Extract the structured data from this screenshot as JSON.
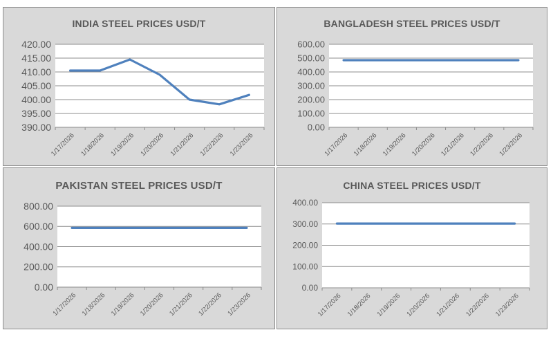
{
  "chart_data": [
    {
      "id": "india",
      "type": "line",
      "title": "INDIA STEEL PRICES USD/T",
      "categories": [
        "1/17/2026",
        "1/18/2026",
        "1/19/2026",
        "1/20/2026",
        "1/21/2026",
        "1/22/2026",
        "1/23/2026"
      ],
      "series": [
        {
          "values": [
            410.5,
            410.5,
            414.5,
            409.0,
            400.0,
            398.3,
            401.7
          ]
        }
      ],
      "ylim": [
        390,
        420
      ],
      "yticks": [
        "390.00",
        "395.00",
        "400.00",
        "405.00",
        "410.00",
        "415.00",
        "420.00"
      ],
      "grid": true,
      "color": "#4f81bd"
    },
    {
      "id": "bangladesh",
      "type": "line",
      "title": "BANGLADESH STEEL PRICES USD/T",
      "categories": [
        "1/17/2026",
        "1/18/2026",
        "1/19/2026",
        "1/20/2026",
        "1/21/2026",
        "1/22/2026",
        "1/23/2026"
      ],
      "series": [
        {
          "values": [
            485,
            485,
            485,
            485,
            485,
            485,
            485
          ]
        }
      ],
      "ylim": [
        0,
        600
      ],
      "yticks": [
        "0.00",
        "100.00",
        "200.00",
        "300.00",
        "400.00",
        "500.00",
        "600.00"
      ],
      "grid": true,
      "color": "#4f81bd"
    },
    {
      "id": "pakistan",
      "type": "line",
      "title": "PAKISTAN STEEL PRICES USD/T",
      "categories": [
        "1/17/2026",
        "1/18/2026",
        "1/19/2026",
        "1/20/2026",
        "1/21/2026",
        "1/22/2026",
        "1/23/2026"
      ],
      "series": [
        {
          "values": [
            585,
            585,
            585,
            585,
            585,
            585,
            585
          ]
        }
      ],
      "ylim": [
        0,
        800
      ],
      "yticks": [
        "0.00",
        "200.00",
        "400.00",
        "600.00",
        "800.00"
      ],
      "grid": true,
      "color": "#4f81bd"
    },
    {
      "id": "china",
      "type": "line",
      "title": "CHINA STEEL PRICES USD/T",
      "categories": [
        "1/17/2026",
        "1/18/2026",
        "1/19/2026",
        "1/20/2026",
        "1/21/2026",
        "1/22/2026",
        "1/23/2026"
      ],
      "series": [
        {
          "values": [
            302,
            302,
            302,
            302,
            302,
            302,
            302
          ]
        }
      ],
      "ylim": [
        0,
        400
      ],
      "yticks": [
        "0.00",
        "100.00",
        "200.00",
        "300.00",
        "400.00"
      ],
      "grid": true,
      "color": "#4f81bd"
    }
  ]
}
